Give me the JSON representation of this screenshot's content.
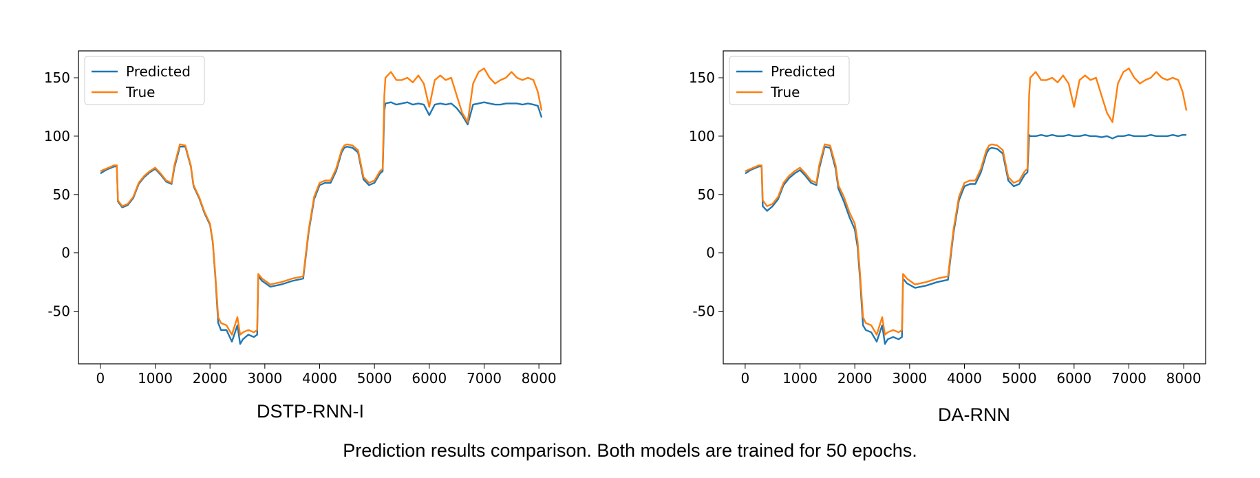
{
  "caption": "Prediction results comparison. Both models are trained for 50 epochs.",
  "colors": {
    "predicted": "#1f77b4",
    "true": "#ff7f0e"
  },
  "chart_data": [
    {
      "type": "line",
      "title": "DSTP-RNN-I",
      "xlabel": "",
      "ylabel": "",
      "xlim": [
        -400,
        8400
      ],
      "ylim": [
        -95,
        173
      ],
      "xticks": [
        0,
        1000,
        2000,
        3000,
        4000,
        5000,
        6000,
        7000,
        8000
      ],
      "yticks": [
        -50,
        0,
        50,
        100,
        150
      ],
      "legend": {
        "position": "top-left",
        "entries": [
          "Predicted",
          "True"
        ]
      },
      "series": [
        {
          "name": "True",
          "x": [
            0,
            100,
            200,
            250,
            300,
            320,
            400,
            500,
            600,
            700,
            800,
            900,
            1000,
            1100,
            1200,
            1300,
            1350,
            1450,
            1550,
            1650,
            1700,
            1800,
            1900,
            2000,
            2050,
            2100,
            2150,
            2200,
            2300,
            2400,
            2500,
            2550,
            2600,
            2700,
            2800,
            2860,
            2880,
            2950,
            3100,
            3300,
            3500,
            3700,
            3800,
            3900,
            4000,
            4100,
            4200,
            4300,
            4400,
            4450,
            4500,
            4600,
            4700,
            4800,
            4900,
            5000,
            5100,
            5150,
            5180,
            5200,
            5300,
            5400,
            5500,
            5600,
            5700,
            5800,
            5900,
            6000,
            6100,
            6200,
            6300,
            6400,
            6500,
            6600,
            6700,
            6800,
            6900,
            7000,
            7100,
            7200,
            7300,
            7400,
            7500,
            7600,
            7700,
            7800,
            7900,
            7980,
            8050
          ],
          "y": [
            70,
            72,
            74,
            75,
            75,
            45,
            40,
            42,
            48,
            60,
            66,
            70,
            73,
            68,
            62,
            60,
            75,
            93,
            92,
            75,
            58,
            48,
            35,
            25,
            10,
            -20,
            -55,
            -60,
            -62,
            -70,
            -55,
            -70,
            -68,
            -66,
            -68,
            -66,
            -18,
            -22,
            -27,
            -25,
            -22,
            -20,
            20,
            48,
            60,
            62,
            62,
            72,
            88,
            92,
            93,
            92,
            88,
            65,
            60,
            62,
            70,
            72,
            135,
            150,
            155,
            148,
            148,
            150,
            146,
            152,
            145,
            125,
            148,
            152,
            148,
            150,
            135,
            120,
            112,
            145,
            155,
            158,
            150,
            145,
            148,
            150,
            155,
            150,
            148,
            150,
            148,
            138,
            122
          ]
        },
        {
          "name": "Predicted",
          "x": [
            0,
            100,
            200,
            250,
            300,
            320,
            400,
            500,
            600,
            700,
            800,
            900,
            1000,
            1100,
            1200,
            1300,
            1350,
            1450,
            1550,
            1650,
            1700,
            1800,
            1900,
            2000,
            2050,
            2100,
            2150,
            2200,
            2300,
            2400,
            2500,
            2550,
            2600,
            2700,
            2800,
            2860,
            2880,
            2950,
            3100,
            3300,
            3500,
            3700,
            3800,
            3900,
            4000,
            4100,
            4200,
            4300,
            4400,
            4450,
            4500,
            4600,
            4700,
            4800,
            4900,
            5000,
            5100,
            5150,
            5180,
            5200,
            5300,
            5400,
            5500,
            5600,
            5700,
            5800,
            5900,
            6000,
            6100,
            6200,
            6300,
            6400,
            6500,
            6600,
            6700,
            6800,
            6900,
            7000,
            7100,
            7200,
            7300,
            7400,
            7500,
            7600,
            7700,
            7800,
            7900,
            7980,
            8050
          ],
          "y": [
            68,
            71,
            73,
            74,
            74,
            44,
            39,
            41,
            47,
            59,
            65,
            69,
            72,
            67,
            61,
            59,
            73,
            91,
            91,
            74,
            57,
            47,
            34,
            24,
            9,
            -22,
            -60,
            -66,
            -66,
            -76,
            -62,
            -78,
            -74,
            -70,
            -72,
            -70,
            -20,
            -24,
            -29,
            -27,
            -24,
            -22,
            18,
            46,
            58,
            60,
            60,
            70,
            86,
            90,
            91,
            90,
            86,
            63,
            58,
            60,
            68,
            70,
            122,
            128,
            129,
            127,
            128,
            129,
            127,
            128,
            127,
            118,
            127,
            128,
            127,
            128,
            124,
            118,
            110,
            127,
            128,
            129,
            128,
            127,
            127,
            128,
            128,
            128,
            127,
            128,
            127,
            126,
            116
          ]
        }
      ]
    },
    {
      "type": "line",
      "title": "DA-RNN",
      "xlabel": "",
      "ylabel": "",
      "xlim": [
        -400,
        8400
      ],
      "ylim": [
        -95,
        173
      ],
      "xticks": [
        0,
        1000,
        2000,
        3000,
        4000,
        5000,
        6000,
        7000,
        8000
      ],
      "yticks": [
        -50,
        0,
        50,
        100,
        150
      ],
      "legend": {
        "position": "top-left",
        "entries": [
          "Predicted",
          "True"
        ]
      },
      "series": [
        {
          "name": "True",
          "x": [
            0,
            100,
            200,
            250,
            300,
            320,
            400,
            500,
            600,
            700,
            800,
            900,
            1000,
            1100,
            1200,
            1300,
            1350,
            1450,
            1550,
            1650,
            1700,
            1800,
            1900,
            2000,
            2050,
            2100,
            2150,
            2200,
            2300,
            2400,
            2500,
            2550,
            2600,
            2700,
            2800,
            2860,
            2880,
            2950,
            3100,
            3300,
            3500,
            3700,
            3800,
            3900,
            4000,
            4100,
            4200,
            4300,
            4400,
            4450,
            4500,
            4600,
            4700,
            4800,
            4900,
            5000,
            5100,
            5150,
            5180,
            5200,
            5300,
            5400,
            5500,
            5600,
            5700,
            5800,
            5900,
            6000,
            6100,
            6200,
            6300,
            6400,
            6500,
            6600,
            6700,
            6800,
            6900,
            7000,
            7100,
            7200,
            7300,
            7400,
            7500,
            7600,
            7700,
            7800,
            7900,
            7980,
            8050
          ],
          "y": [
            70,
            72,
            74,
            75,
            75,
            45,
            40,
            42,
            48,
            60,
            66,
            70,
            73,
            68,
            62,
            60,
            75,
            93,
            92,
            75,
            58,
            48,
            35,
            25,
            10,
            -20,
            -55,
            -60,
            -62,
            -70,
            -55,
            -70,
            -68,
            -66,
            -68,
            -66,
            -18,
            -22,
            -27,
            -25,
            -22,
            -20,
            20,
            48,
            60,
            62,
            62,
            72,
            88,
            92,
            93,
            92,
            88,
            65,
            60,
            62,
            70,
            72,
            135,
            150,
            155,
            148,
            148,
            150,
            146,
            152,
            145,
            125,
            148,
            152,
            148,
            150,
            135,
            120,
            112,
            145,
            155,
            158,
            150,
            145,
            148,
            150,
            155,
            150,
            148,
            150,
            148,
            138,
            122
          ]
        },
        {
          "name": "Predicted",
          "x": [
            0,
            100,
            200,
            250,
            300,
            320,
            400,
            500,
            600,
            700,
            800,
            900,
            1000,
            1100,
            1200,
            1300,
            1350,
            1450,
            1550,
            1650,
            1700,
            1800,
            1900,
            2000,
            2050,
            2100,
            2150,
            2200,
            2300,
            2400,
            2500,
            2550,
            2600,
            2700,
            2800,
            2860,
            2880,
            2950,
            3100,
            3300,
            3500,
            3700,
            3800,
            3900,
            4000,
            4100,
            4200,
            4300,
            4400,
            4450,
            4500,
            4600,
            4700,
            4800,
            4900,
            5000,
            5100,
            5150,
            5180,
            5200,
            5300,
            5400,
            5500,
            5600,
            5700,
            5800,
            5900,
            6000,
            6100,
            6200,
            6300,
            6400,
            6500,
            6600,
            6700,
            6800,
            6900,
            7000,
            7100,
            7200,
            7300,
            7400,
            7500,
            7600,
            7700,
            7800,
            7900,
            7980,
            8050
          ],
          "y": [
            68,
            71,
            73,
            74,
            74,
            40,
            36,
            40,
            46,
            58,
            64,
            68,
            71,
            66,
            60,
            58,
            72,
            91,
            90,
            72,
            55,
            44,
            31,
            20,
            5,
            -25,
            -62,
            -66,
            -68,
            -76,
            -62,
            -78,
            -74,
            -72,
            -74,
            -72,
            -22,
            -26,
            -30,
            -28,
            -25,
            -23,
            17,
            45,
            57,
            59,
            59,
            69,
            85,
            89,
            90,
            89,
            85,
            62,
            57,
            59,
            67,
            69,
            101,
            100,
            100,
            101,
            100,
            101,
            100,
            100,
            101,
            100,
            100,
            101,
            100,
            100,
            99,
            100,
            98,
            100,
            100,
            101,
            100,
            100,
            100,
            101,
            100,
            100,
            100,
            101,
            100,
            101,
            101
          ]
        }
      ]
    }
  ]
}
